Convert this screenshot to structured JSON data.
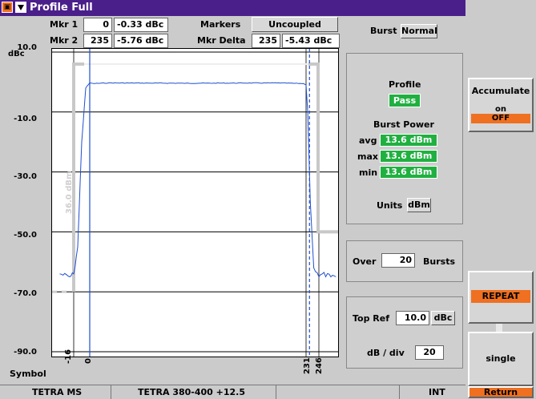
{
  "window": {
    "title": "Profile Full"
  },
  "header": {
    "mkr1_label": "Mkr 1",
    "mkr1_pos": "0",
    "mkr1_val": "-0.33 dBc",
    "mkr2_label": "Mkr 2",
    "mkr2_pos": "235",
    "mkr2_val": "-5.76 dBc",
    "markers_label": "Markers",
    "markers_mode": "Uncoupled",
    "mkr_delta_label": "Mkr Delta",
    "mkr_delta_pos": "235",
    "mkr_delta_val": "-5.43 dBc",
    "burst_label": "Burst",
    "burst_mode": "Normal"
  },
  "plot": {
    "y_unit": "dBc",
    "y_ticks": [
      "10.0",
      "-10.0",
      "-30.0",
      "-50.0",
      "-70.0",
      "-90.0"
    ],
    "x_axis_label": "Symbol",
    "x_ticks": [
      "-16",
      "0",
      "231",
      "246"
    ],
    "mask_annotation": "36.0 dBm"
  },
  "chart_data": {
    "type": "line",
    "title": "",
    "xlabel": "Symbol",
    "ylabel": "dBc",
    "ylim": [
      -95,
      10
    ],
    "y_ticks": [
      10,
      -10,
      -30,
      -50,
      -70,
      -90
    ],
    "x_ticks": [
      -16,
      0,
      231,
      246
    ],
    "series": [
      {
        "points_symbol": [
          -30,
          -20,
          -16,
          -12,
          -8,
          -4,
          0,
          4,
          20,
          100,
          200,
          228,
          231,
          233,
          236,
          240,
          246,
          250,
          260,
          266
        ],
        "points_dbc": [
          -64,
          -65,
          -64,
          -55,
          -20,
          -2,
          -0.3,
          -0.5,
          -0.3,
          -0.4,
          -0.3,
          -0.5,
          -1,
          -10,
          -40,
          -62,
          -65,
          -64,
          -65,
          -65
        ]
      }
    ],
    "markers": [
      {
        "symbol": 0,
        "dbc": -0.33
      },
      {
        "symbol": 235,
        "dbc": -5.76
      }
    ],
    "grid": true
  },
  "profile": {
    "title": "Profile",
    "status": "Pass",
    "burst_power_title": "Burst Power",
    "avg_label": "avg",
    "avg_val": "13.6 dBm",
    "max_label": "max",
    "max_val": "13.6 dBm",
    "min_label": "min",
    "min_val": "13.6 dBm",
    "units_label": "Units",
    "units_val": "dBm"
  },
  "over": {
    "label": "Over",
    "value": "20",
    "unit": "Bursts"
  },
  "scale": {
    "top_ref_label": "Top Ref",
    "top_ref_val": "10.0",
    "top_ref_unit": "dBc",
    "db_div_label": "dB / div",
    "db_div_val": "20"
  },
  "softkeys": {
    "accumulate": "Accumulate",
    "accumulate_on": "on",
    "accumulate_off": "OFF",
    "repeat": "REPEAT",
    "single": "single",
    "return": "Return"
  },
  "statusbar": {
    "standard": "TETRA MS",
    "band": "TETRA 380-400 +12.5",
    "ref": "INT"
  },
  "colors": {
    "title_bar": "#4a1f8a",
    "pass_green": "#20b040",
    "accent_orange": "#ef7020",
    "trace_blue": "#1f4fd0",
    "mask_gray": "#c8c8c8"
  }
}
